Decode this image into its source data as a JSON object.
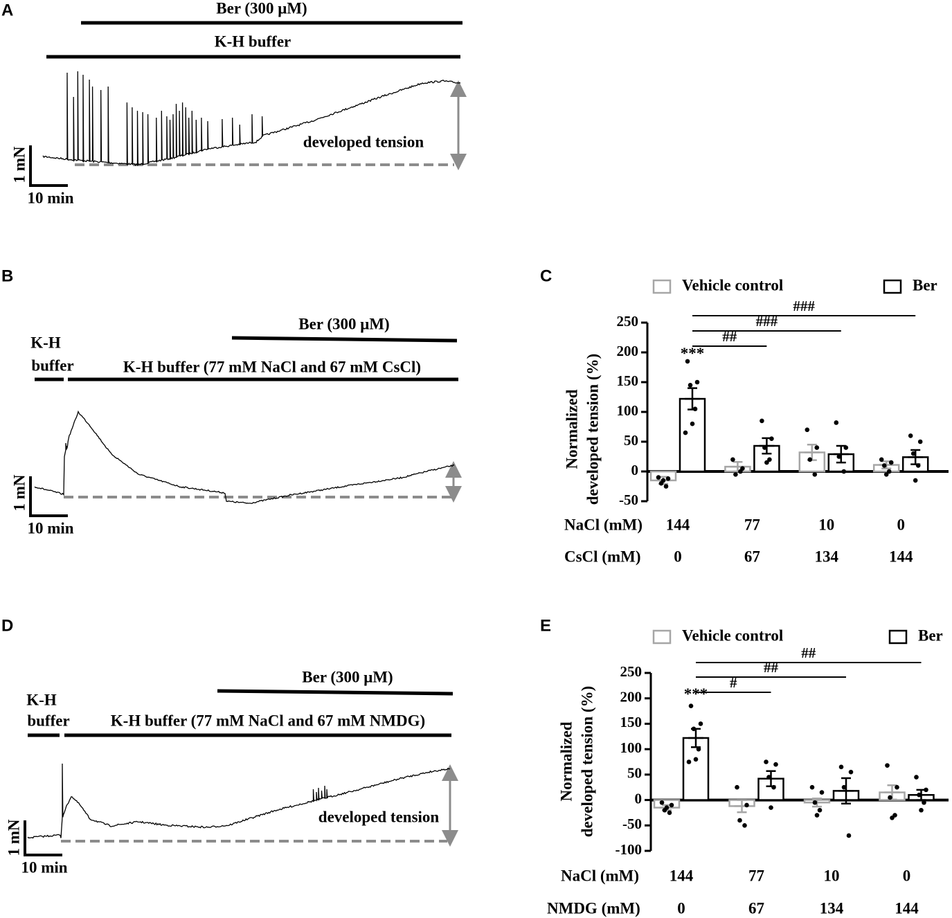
{
  "panels": [
    {
      "letter": "A",
      "drug": "Ber (300 μM)",
      "buffer": "K-H buffer",
      "annotation": "developed tension",
      "scale_y": "1 mN",
      "scale_x": "10 min"
    },
    {
      "letter": "B",
      "drug": "Ber (300 μM)",
      "pre_buffer": [
        "K-H",
        "buffer"
      ],
      "buffer": "K-H buffer (77 mM NaCl and 67 mM CsCl)",
      "scale_y": "1 mN",
      "scale_x": "10 min"
    },
    {
      "letter": "D",
      "drug": "Ber (300 μM)",
      "pre_buffer": [
        "K-H",
        "buffer"
      ],
      "buffer": "K-H buffer (77 mM NaCl and 67 mM NMDG)",
      "annotation": "developed tension",
      "scale_y": "1 mN",
      "scale_x": "10 min"
    }
  ],
  "chart_data": [
    {
      "type": "bar",
      "panel": "C",
      "ylabel": [
        "Normalized",
        "developed tension  (%)"
      ],
      "ylim": [
        -50,
        250
      ],
      "yticks": [
        -50,
        0,
        50,
        100,
        150,
        200,
        250
      ],
      "rows": [
        {
          "name": "NaCl (mM)",
          "values": [
            144,
            77,
            10,
            0
          ]
        },
        {
          "name": "CsCl (mM)",
          "values": [
            0,
            67,
            134,
            144
          ]
        }
      ],
      "series": [
        {
          "name": "Vehicle control",
          "color": "#a6a6a6",
          "values": [
            -15,
            8,
            32,
            11
          ],
          "errors": [
            6,
            8,
            13,
            6
          ],
          "points": [
            [
              -10,
              -12,
              -20,
              -25,
              -15
            ],
            [
              20,
              5,
              -5,
              0
            ],
            [
              70,
              40,
              20,
              -5
            ],
            [
              20,
              15,
              10,
              0,
              -5
            ]
          ]
        },
        {
          "name": "Ber",
          "color": "#000000",
          "values": [
            122,
            43,
            29,
            24
          ],
          "errors": [
            18,
            13,
            14,
            12
          ],
          "points": [
            [
              185,
              150,
              145,
              105,
              80,
              65
            ],
            [
              85,
              55,
              40,
              20,
              15
            ],
            [
              82,
              40,
              25,
              0
            ],
            [
              60,
              50,
              30,
              10,
              -15
            ]
          ]
        }
      ],
      "significance": "***",
      "comparisons": [
        "##",
        "###",
        "###"
      ]
    },
    {
      "type": "bar",
      "panel": "E",
      "ylabel": [
        "Normalized",
        "developed tension (%)"
      ],
      "ylim": [
        -100,
        250
      ],
      "yticks": [
        -100,
        -50,
        0,
        50,
        100,
        150,
        200,
        250
      ],
      "rows": [
        {
          "name": "NaCl (mM)",
          "values": [
            144,
            77,
            10,
            0
          ]
        },
        {
          "name": "NMDG (mM)",
          "values": [
            0,
            67,
            134,
            144
          ]
        }
      ],
      "series": [
        {
          "name": "Vehicle control",
          "color": "#a6a6a6",
          "values": [
            -15,
            -12,
            -5,
            15
          ],
          "errors": [
            5,
            12,
            8,
            14
          ],
          "points": [
            [
              -5,
              -10,
              -20,
              -25,
              -15
            ],
            [
              25,
              -10,
              -40,
              -50
            ],
            [
              25,
              15,
              -5,
              -20,
              -30
            ],
            [
              68,
              25,
              5,
              -30,
              -35
            ]
          ]
        },
        {
          "name": "Ber",
          "color": "#000000",
          "values": [
            122,
            42,
            18,
            10
          ],
          "errors": [
            18,
            15,
            25,
            10
          ],
          "points": [
            [
              185,
              150,
              140,
              100,
              80,
              75
            ],
            [
              75,
              70,
              45,
              25,
              -15
            ],
            [
              65,
              55,
              25,
              -70
            ],
            [
              45,
              20,
              10,
              -5,
              -20
            ]
          ]
        }
      ],
      "significance": "***",
      "comparisons": [
        "#",
        "##",
        "##"
      ]
    }
  ]
}
